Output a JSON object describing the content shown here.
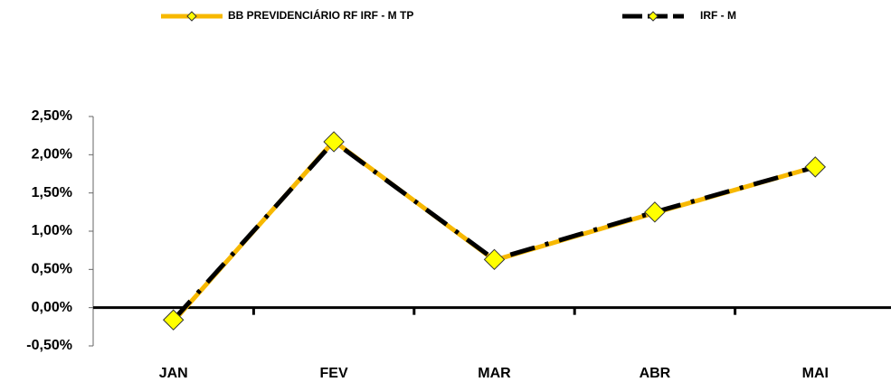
{
  "chart_data": {
    "type": "line",
    "categories": [
      "JAN",
      "FEV",
      "MAR",
      "ABR",
      "MAI"
    ],
    "series": [
      {
        "name": "BB PREVIDENCIÁRIO RF IRF - M TP",
        "color": "#f7b800",
        "marker_color": "#ffff00",
        "dash": false,
        "values": [
          -0.18,
          2.18,
          0.62,
          1.24,
          1.84
        ]
      },
      {
        "name": "IRF - M",
        "color": "#000000",
        "marker_color": "#ffff00",
        "dash": true,
        "values": [
          -0.16,
          2.17,
          0.63,
          1.25,
          1.84
        ]
      }
    ],
    "ylim": [
      -0.5,
      2.5
    ],
    "yticks": [
      {
        "value": -0.5,
        "label": "-0,50%"
      },
      {
        "value": 0,
        "label": "0,00%"
      },
      {
        "value": 0.5,
        "label": "0,50%"
      },
      {
        "value": 1,
        "label": "1,00%"
      },
      {
        "value": 1.5,
        "label": "1,50%"
      },
      {
        "value": 2,
        "label": "2,00%"
      },
      {
        "value": 2.5,
        "label": "2,50%"
      }
    ],
    "legend": "top"
  }
}
